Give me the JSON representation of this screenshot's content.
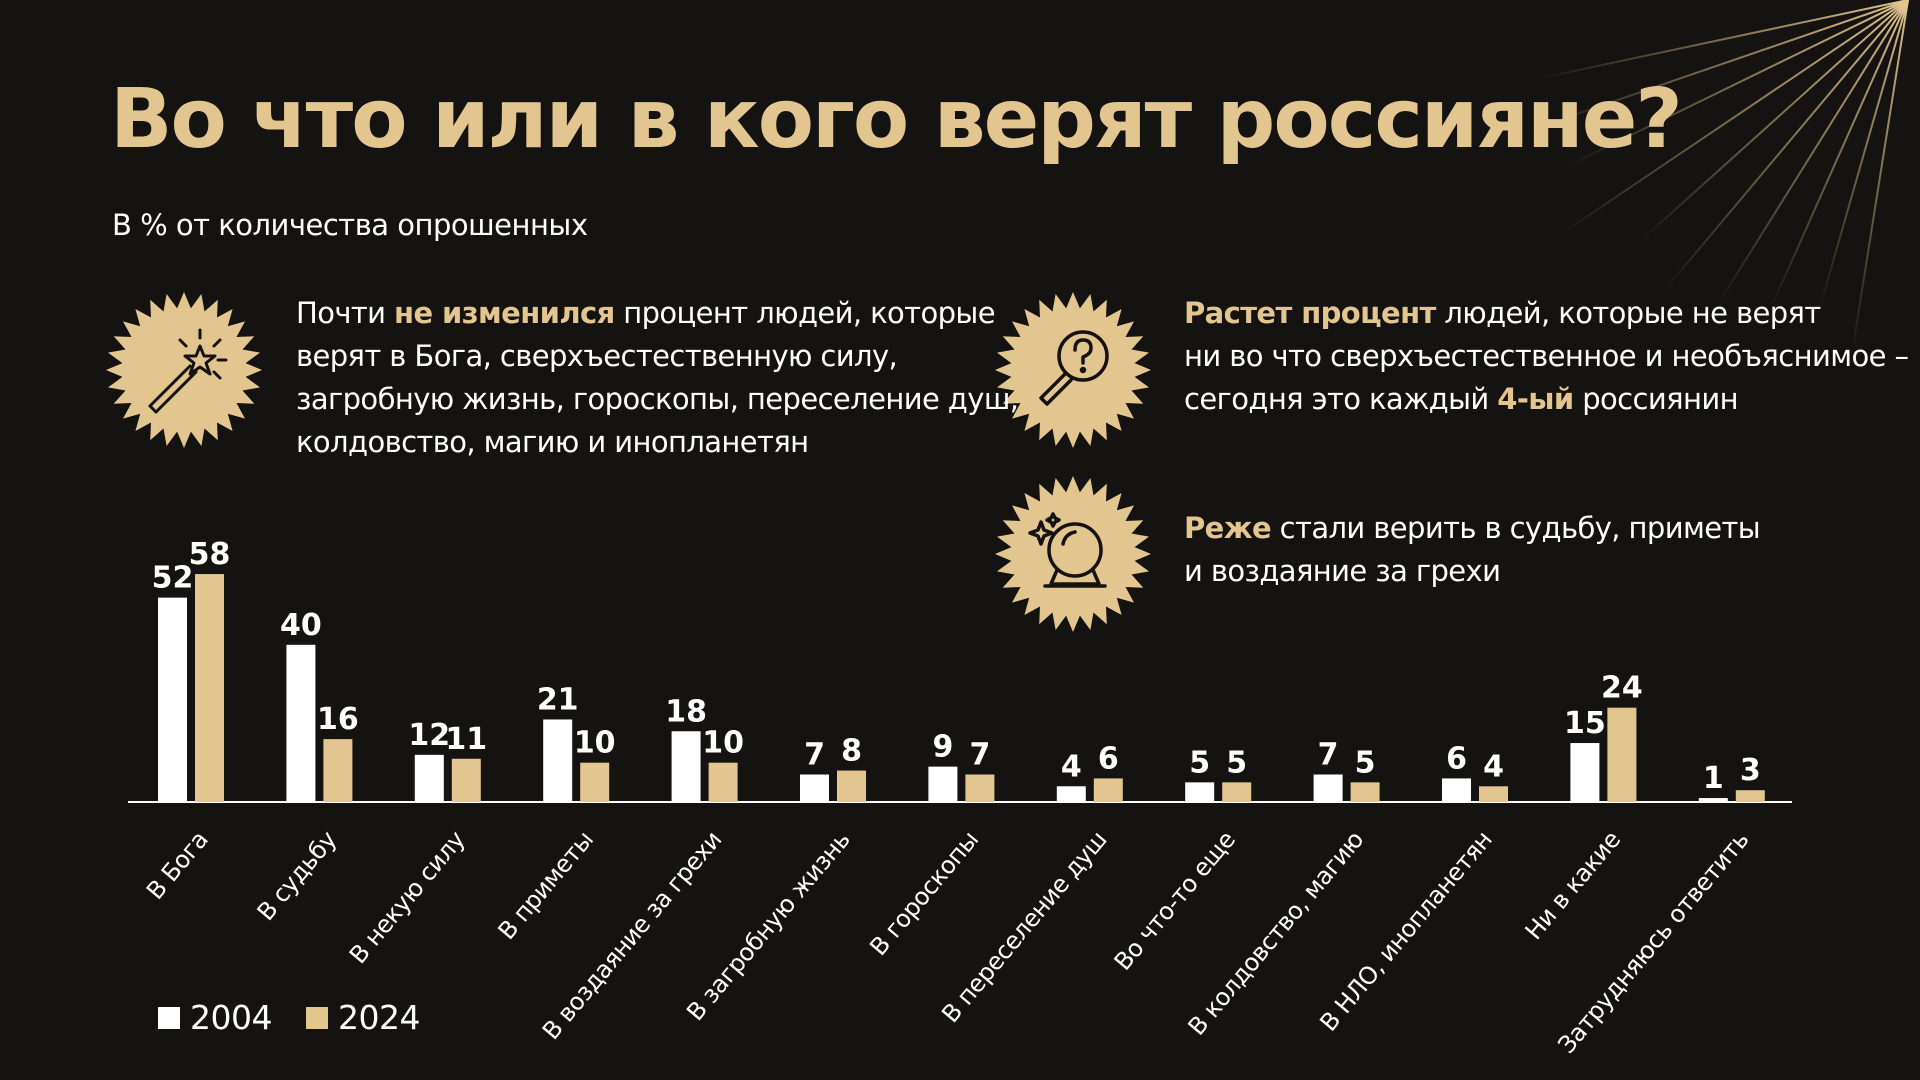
{
  "title": "Во что или в кого верят россияне?",
  "subtitle": "В % от количества опрошенных",
  "colors": {
    "bg": "#141311",
    "accent": "#e3c58f",
    "white": "#ffffff"
  },
  "notes": [
    {
      "icon": "magic-wand-icon",
      "lines": [
        [
          {
            "t": "Почти "
          },
          {
            "t": "не изменился",
            "hl": true
          },
          {
            "t": " процент людей, которые"
          }
        ],
        [
          {
            "t": "верят в Бога, сверхъестественную силу,"
          }
        ],
        [
          {
            "t": "загробную жизнь, гороскопы, переселение душ,"
          }
        ],
        [
          {
            "t": "колдовство, магию и инопланетян"
          }
        ]
      ]
    },
    {
      "icon": "magnifier-question-icon",
      "lines": [
        [
          {
            "t": "Растет процент",
            "hl": true
          },
          {
            "t": " людей, которые не верят"
          }
        ],
        [
          {
            "t": "ни во что сверхъестественное и необъяснимое –"
          }
        ],
        [
          {
            "t": "сегодня это каждый "
          },
          {
            "t": "4-ый",
            "hl": true
          },
          {
            "t": " россиянин"
          }
        ]
      ]
    },
    {
      "icon": "crystal-ball-icon",
      "lines": [
        [
          {
            "t": "Реже",
            "hl": true
          },
          {
            "t": " стали верить в судьбу, приметы"
          }
        ],
        [
          {
            "t": "и воздаяние за грехи"
          }
        ]
      ]
    }
  ],
  "legend": [
    {
      "label": "2004",
      "color": "#ffffff"
    },
    {
      "label": "2024",
      "color": "#e3c58f"
    }
  ],
  "chart_data": {
    "type": "bar",
    "categories": [
      "В Бога",
      "В судьбу",
      "В некую силу",
      "В приметы",
      "В воздаяние за грехи",
      "В загробную жизнь",
      "В гороскопы",
      "В переселение душ",
      "Во что-то еще",
      "В колдовство, магию",
      "В НЛО, инопланетян",
      "Ни в какие",
      "Затрудняюсь ответить"
    ],
    "series": [
      {
        "name": "2004",
        "color": "#ffffff",
        "values": [
          52,
          40,
          12,
          21,
          18,
          7,
          9,
          4,
          5,
          7,
          6,
          15,
          1
        ]
      },
      {
        "name": "2024",
        "color": "#e3c58f",
        "values": [
          58,
          16,
          11,
          10,
          10,
          8,
          7,
          6,
          5,
          5,
          4,
          24,
          3
        ]
      }
    ],
    "title": "Во что или в кого верят россияне?",
    "ylabel": "В % от количества опрошенных",
    "ylim": [
      0,
      60
    ],
    "legend_position": "bottom-left"
  }
}
